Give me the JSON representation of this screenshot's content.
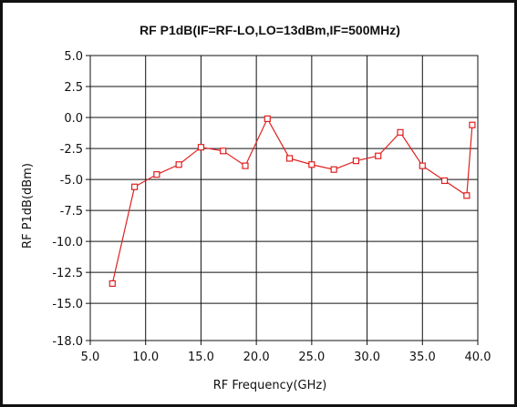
{
  "chart_data": {
    "type": "line",
    "title": "RF P1dB(IF=RF-LO,LO=13dBm,IF=500MHz)",
    "xlabel": "RF Frequency(GHz)",
    "ylabel": "RF P1dB(dBm)",
    "xlim": [
      5.0,
      40.0
    ],
    "ylim": [
      -18.0,
      5.0
    ],
    "x_ticks": [
      "5.0",
      "10.0",
      "15.0",
      "20.0",
      "25.0",
      "30.0",
      "35.0",
      "40.0"
    ],
    "x_tick_values": [
      5,
      10,
      15,
      20,
      25,
      30,
      35,
      40
    ],
    "y_ticks": [
      "5.0",
      "2.5",
      "0.0",
      "-2.5",
      "-5.0",
      "-7.5",
      "-10.0",
      "-12.5",
      "-15.0",
      "-18.0"
    ],
    "y_tick_values": [
      5.0,
      2.5,
      0.0,
      -2.5,
      -5.0,
      -7.5,
      -10.0,
      -12.5,
      -15.0,
      -18.0
    ],
    "grid": true,
    "series": [
      {
        "color": "#e02020",
        "marker": "square",
        "x": [
          7,
          9,
          11,
          13,
          15,
          17,
          19,
          21,
          23,
          25,
          27,
          29,
          31,
          33,
          35,
          37,
          39,
          39.5
        ],
        "y": [
          -13.4,
          -5.6,
          -4.6,
          -3.8,
          -2.4,
          -2.7,
          -3.9,
          -0.1,
          -3.3,
          -3.8,
          -4.2,
          -3.5,
          -3.1,
          -1.2,
          -3.9,
          -5.1,
          -6.3,
          -0.6
        ]
      }
    ]
  }
}
